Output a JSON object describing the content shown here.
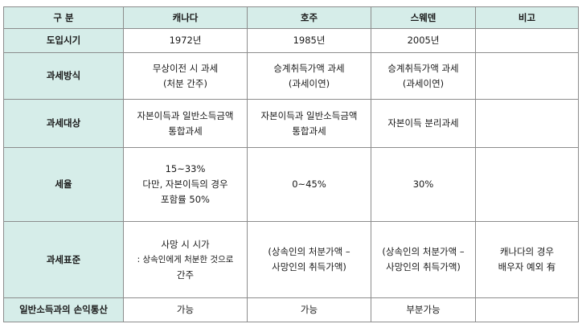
{
  "header": {
    "category": "구 분",
    "canada": "캐나다",
    "australia": "호주",
    "sweden": "스웨덴",
    "note": "비고"
  },
  "rows": {
    "intro_year": {
      "label": "도입시기",
      "canada": "1972년",
      "australia": "1985년",
      "sweden": "2005년",
      "note": ""
    },
    "tax_method": {
      "label": "과세방식",
      "canada": [
        "무상이전 시 과세",
        "(처분 간주)"
      ],
      "australia": [
        "승계취득가액 과세",
        "(과세이연)"
      ],
      "sweden": [
        "승계취득가액 과세",
        "(과세이연)"
      ],
      "note": ""
    },
    "tax_target": {
      "label": "과세대상",
      "canada": [
        "자본이득과 일반소득금액",
        "통합과세"
      ],
      "australia": [
        "자본이득과 일반소득금액",
        "통합과세"
      ],
      "sweden": "자본이득 분리과세",
      "note": ""
    },
    "tax_rate": {
      "label": "세율",
      "canada": [
        "15~33%",
        "다만, 자본이득의 경우",
        "포함률 50%"
      ],
      "australia": "0~45%",
      "sweden": "30%",
      "note": ""
    },
    "tax_standard": {
      "label": "과세표준",
      "canada": [
        "사망 시 시가",
        ": 상속인에게 처분한 것으로",
        "간주"
      ],
      "australia": [
        "(상속인의 처분가액 –",
        "사망인의 취득가액)"
      ],
      "sweden": [
        "(상속인의 처분가액 –",
        "사망인의 취득가액)"
      ],
      "note": [
        "캐나다의 경우",
        "배우자 예외 有"
      ]
    },
    "loss_offset": {
      "label": "일반소득과의 손익통산",
      "canada": "가능",
      "australia": "가능",
      "sweden": "부분가능",
      "note": ""
    }
  }
}
